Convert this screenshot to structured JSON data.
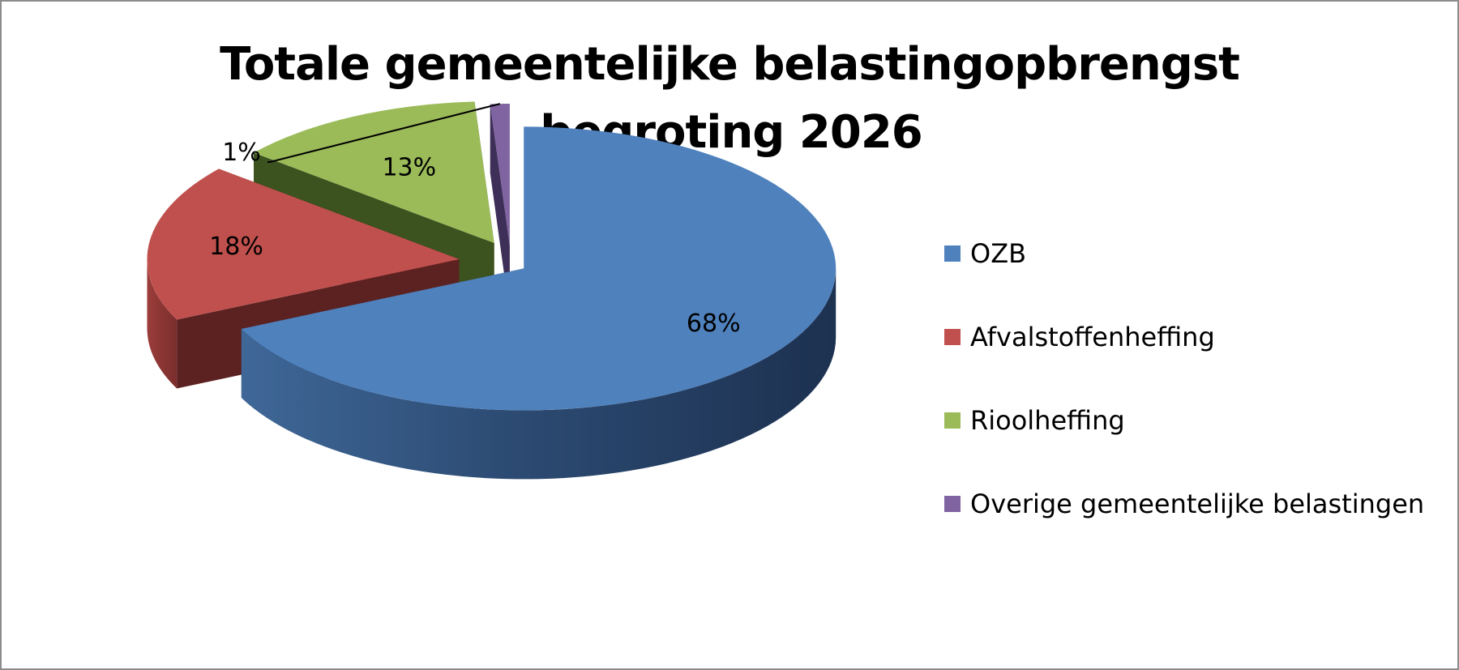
{
  "chart_data": {
    "type": "pie",
    "title": "Totale gemeentelijke belastingopbrengst begroting 2026",
    "title_lines": [
      "Totale gemeentelijke belastingopbrengst",
      "begroting 2026"
    ],
    "style": "3d-exploded",
    "legend_position": "right",
    "categories": [
      "OZB",
      "Afvalstoffenheffing",
      "Rioolheffing",
      "Overige gemeentelijke belastingen"
    ],
    "values": [
      68,
      18,
      13,
      1
    ],
    "unit": "%",
    "data_labels": [
      "68%",
      "18%",
      "13%",
      "1%"
    ],
    "colors": [
      "#4f81bd",
      "#c0504d",
      "#9bbb59",
      "#8064a2"
    ]
  }
}
